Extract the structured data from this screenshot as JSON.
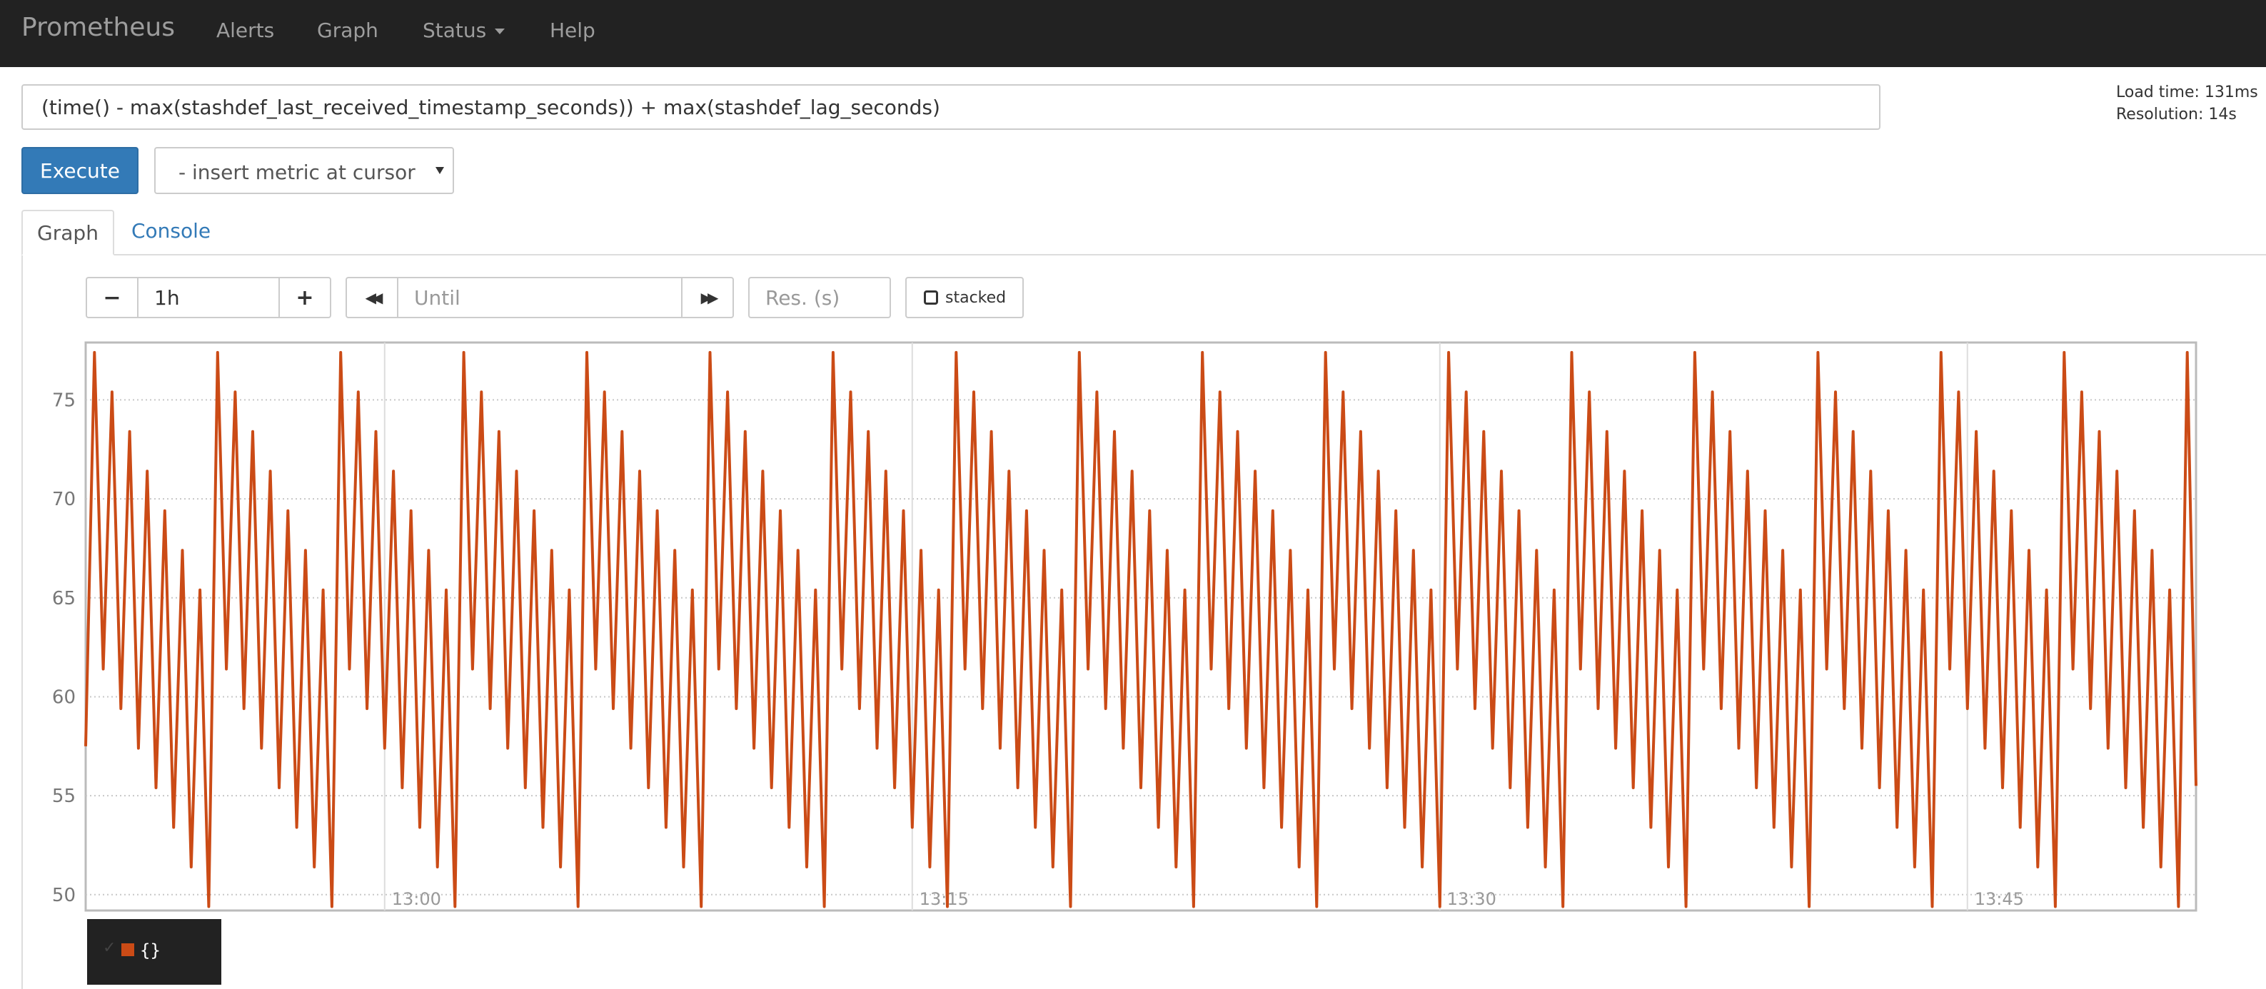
{
  "navbar": {
    "brand": "Prometheus",
    "items": [
      "Alerts",
      "Graph",
      "Status",
      "Help"
    ]
  },
  "query": {
    "expression": "(time() - max(stashdef_last_received_timestamp_seconds)) + max(stashdef_lag_seconds)",
    "load_time": "Load time: 131ms",
    "resolution": "Resolution: 14s"
  },
  "actions": {
    "execute_label": "Execute",
    "metric_select_value": "- insert metric at cursor"
  },
  "tabs": [
    "Graph",
    "Console"
  ],
  "controls": {
    "minus": "−",
    "range": "1h",
    "plus": "+",
    "back": "◀◀",
    "until_placeholder": "Until",
    "forward": "▶▶",
    "res_placeholder": "Res. (s)",
    "stacked_label": "stacked"
  },
  "legend": {
    "check": "✓",
    "label": "{}"
  },
  "colors": {
    "series": "#cb4b16",
    "navbar": "#222222",
    "primary": "#337ab7"
  },
  "chart_data": {
    "type": "line",
    "title": "",
    "xlabel": "",
    "ylabel": "",
    "ylim": [
      49.2,
      77.9
    ],
    "y_ticks": [
      50,
      55,
      60,
      65,
      70,
      75
    ],
    "x_range_minutes": [
      0,
      60
    ],
    "x_ticks": [
      {
        "label": "13:00",
        "minute": 8.5
      },
      {
        "label": "13:15",
        "minute": 23.5
      },
      {
        "label": "13:30",
        "minute": 38.5
      },
      {
        "label": "13:45",
        "minute": 53.5
      }
    ],
    "series": [
      {
        "name": "{}",
        "values_per_cycle": [
          77.4,
          61.4,
          75.4,
          59.4,
          73.4,
          57.4,
          71.4,
          55.4,
          69.4,
          53.4,
          67.4,
          51.4,
          65.4,
          49.4
        ],
        "cycle_minutes": 3.5,
        "start": {
          "minute": 0,
          "value": 57.5
        },
        "end": {
          "minute": 60,
          "value": 55.5
        }
      }
    ]
  }
}
